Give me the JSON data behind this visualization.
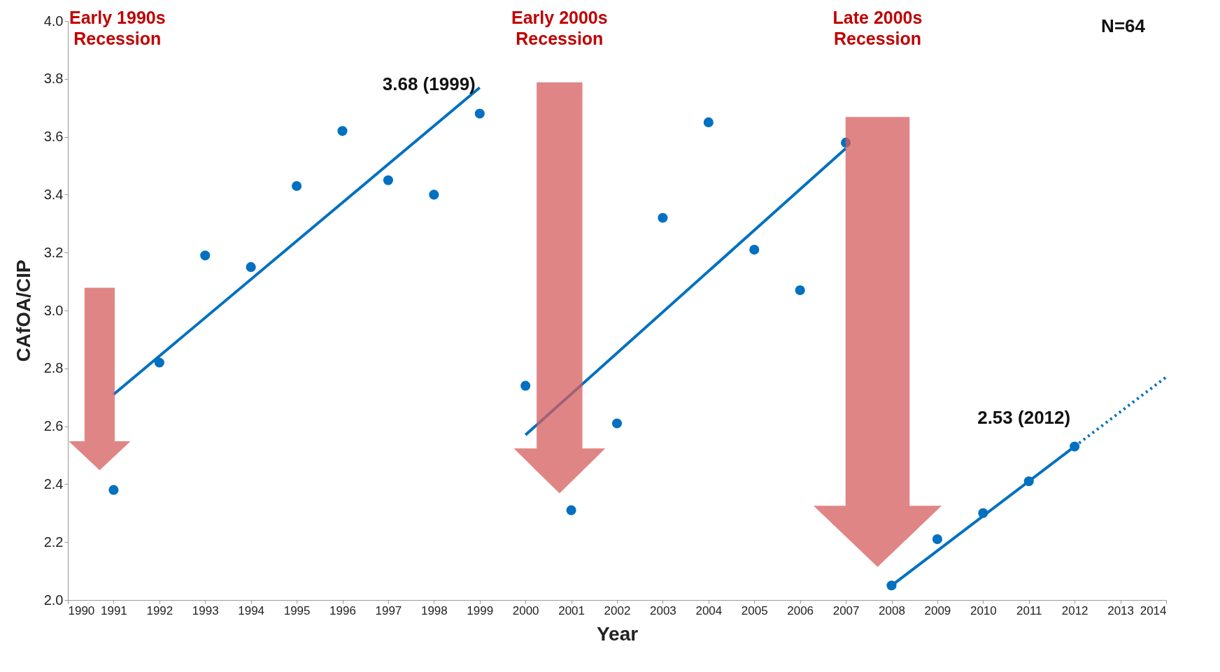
{
  "chart_data": {
    "type": "scatter",
    "xlabel": "Year",
    "ylabel": "CAfOA/CIP",
    "xlim": [
      1990,
      2014
    ],
    "xticks": [
      1990,
      1991,
      1992,
      1993,
      1994,
      1995,
      1996,
      1997,
      1998,
      1999,
      2000,
      2001,
      2002,
      2003,
      2004,
      2005,
      2006,
      2007,
      2008,
      2009,
      2010,
      2011,
      2012,
      2013,
      2014
    ],
    "ylim": [
      2,
      4
    ],
    "yticks": [
      {
        "value": 2,
        "label": "2.0"
      },
      {
        "value": 2.2,
        "label": "2.2"
      },
      {
        "value": 2.4,
        "label": "2.4"
      },
      {
        "value": 2.6,
        "label": "2.6"
      },
      {
        "value": 2.8,
        "label": "2.8"
      },
      {
        "value": 3,
        "label": "3.0"
      },
      {
        "value": 3.2,
        "label": "3.2"
      },
      {
        "value": 3.4,
        "label": "3.4"
      },
      {
        "value": 3.6,
        "label": "3.6"
      },
      {
        "value": 3.8,
        "label": "3.8"
      },
      {
        "value": 4,
        "label": "4.0"
      }
    ],
    "grid": false,
    "series": [
      {
        "type": "scatter",
        "color": "#0070c0",
        "marker": "circle",
        "x": [
          1991,
          1992,
          1993,
          1994,
          1995,
          1996,
          1997,
          1998,
          1999,
          2000,
          2001,
          2002,
          2003,
          2004,
          2005,
          2006,
          2007,
          2008,
          2009,
          2010,
          2011,
          2012
        ],
        "values": [
          2.38,
          2.82,
          3.19,
          3.15,
          3.43,
          3.62,
          3.45,
          3.4,
          3.68,
          2.74,
          2.31,
          2.61,
          3.32,
          3.65,
          3.21,
          3.07,
          3.58,
          2.05,
          2.21,
          2.3,
          2.41,
          2.53
        ]
      },
      {
        "type": "line",
        "color": "#0070c0",
        "line_style": "solid",
        "x": [
          1991,
          1999
        ],
        "values": [
          2.71,
          3.77
        ]
      },
      {
        "type": "line",
        "color": "#0070c0",
        "line_style": "solid",
        "x": [
          2000,
          2007
        ],
        "values": [
          2.57,
          3.56
        ]
      },
      {
        "type": "line",
        "color": "#0070c0",
        "line_style": "solid",
        "x": [
          2008,
          2012
        ],
        "values": [
          2.05,
          2.53
        ]
      },
      {
        "type": "line",
        "color": "#0070c0",
        "line_style": "dotted",
        "x": [
          2012,
          2014
        ],
        "values": [
          2.53,
          2.77
        ]
      }
    ],
    "annotations": [
      "Early 1990s\nRecession",
      "Early 2000s\nRecession",
      "Late 2000s\nRecession",
      {
        "text": "3.68 (1999)",
        "x": 1999,
        "y": 3.68
      },
      {
        "text": "2.53 (2012)",
        "x": 2012,
        "y": 2.53
      },
      "N=64"
    ]
  }
}
